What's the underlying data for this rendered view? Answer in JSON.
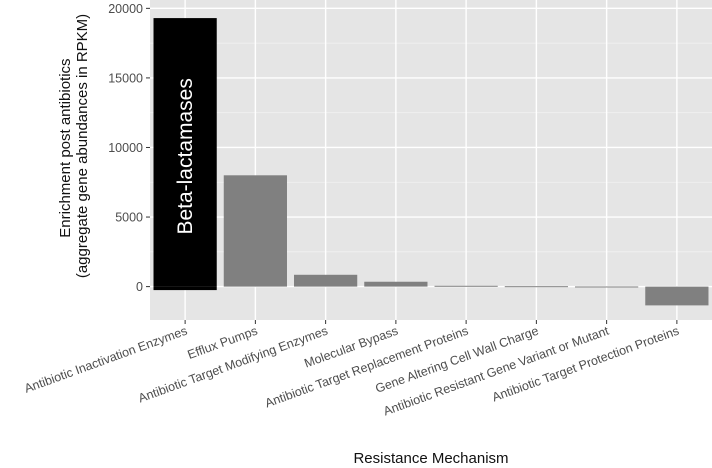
{
  "chart_data": {
    "type": "bar",
    "xlabel": "Resistance Mechanism",
    "ylabel_lines": [
      "Enrichment post antibiotics",
      "(aggregate gene abundances in RPKM)"
    ],
    "categories": [
      "Antibiotic Inactivation Enzymes",
      "Efflux Pumps",
      "Antibiotic Target Modifying Enzymes",
      "Molecular Bypass",
      "Antibiotic Target Replacement Proteins",
      "Gene Altering Cell Wall Charge",
      "Antibiotic Resistant Gene Variant or Mutant",
      "Antibiotic Target Protection Proteins"
    ],
    "values": [
      19300,
      8000,
      850,
      350,
      60,
      30,
      10,
      -1350
    ],
    "highlight": {
      "index": 0,
      "color": "#000000",
      "label": "Beta-lactamases",
      "negative_part": -250
    },
    "bar_color": "#808080",
    "panel_color": "#e5e5e5",
    "grid": true,
    "ylim": [
      -2400,
      20600
    ],
    "yticks": [
      0,
      5000,
      10000,
      15000,
      20000
    ],
    "ytick_labels": [
      "0",
      "5000",
      "10000",
      "15000",
      "20000"
    ]
  }
}
